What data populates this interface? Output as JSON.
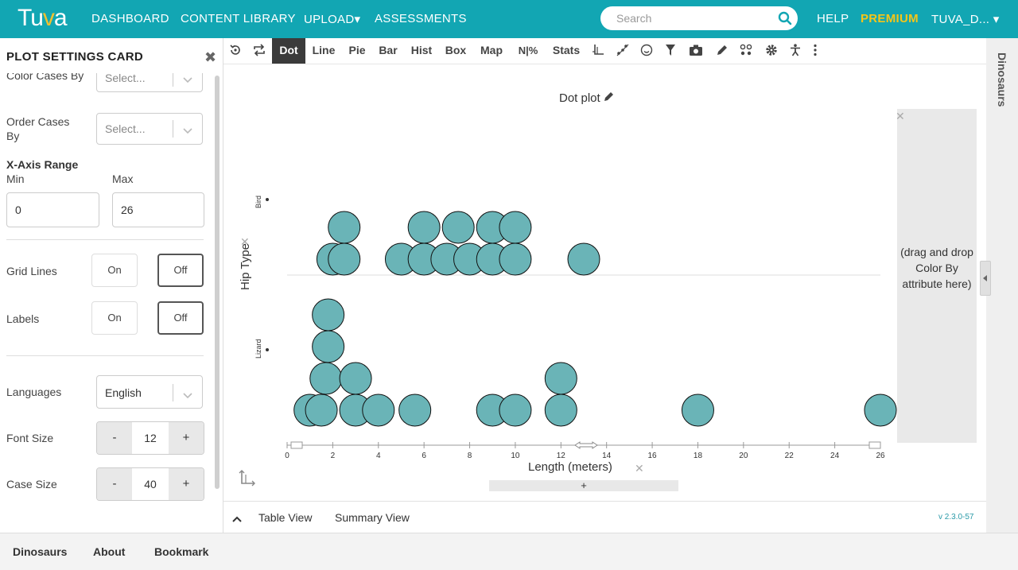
{
  "nav": {
    "logo": "Tuva",
    "items": [
      "DASHBOARD",
      "CONTENT LIBRARY",
      "UPLOAD▾",
      "ASSESSMENTS"
    ],
    "search_placeholder": "Search",
    "help": "HELP",
    "premium": "PREMIUM",
    "user": "TUVA_D... ▾"
  },
  "settings": {
    "title": "PLOT SETTINGS CARD",
    "color_cases_by": {
      "label": "Color Cases By",
      "value": "Select..."
    },
    "order_cases_by": {
      "label_line1": "Order Cases",
      "label_line2": "By",
      "value": "Select..."
    },
    "x_axis_range": {
      "label": "X-Axis Range",
      "min_label": "Min",
      "max_label": "Max",
      "min": "0",
      "max": "26"
    },
    "grid_lines": {
      "label": "Grid Lines",
      "on": "On",
      "off": "Off",
      "selected": "Off"
    },
    "labels": {
      "label": "Labels",
      "on": "On",
      "off": "Off",
      "selected": "Off"
    },
    "languages": {
      "label": "Languages",
      "value": "English"
    },
    "font_size": {
      "label": "Font Size",
      "value": "12",
      "minus": "-",
      "plus": "+"
    },
    "case_size": {
      "label": "Case Size",
      "value": "40",
      "minus": "-",
      "plus": "+"
    }
  },
  "toolbar": {
    "plot_types": [
      "Dot",
      "Line",
      "Pie",
      "Bar",
      "Hist",
      "Box",
      "Map"
    ],
    "active": "Dot",
    "percent_label": "N|%",
    "stats_label": "Stats",
    "icons": [
      "reset-icon",
      "swap-icon",
      "axis-icon",
      "scatter-icon",
      "smiley-icon",
      "filter-icon",
      "camera-icon",
      "pen-icon",
      "link-icon",
      "gear-icon",
      "accessibility-icon",
      "more-icon"
    ]
  },
  "graph": {
    "title": "Dot plot",
    "drop_panel_text": "(drag and drop Color By attribute here)",
    "x_axis_label": "Length (meters)",
    "y_axis_label": "Hip Type",
    "plus_label": "+"
  },
  "chart_data": {
    "type": "scatter",
    "title": "Dot plot",
    "xlabel": "Length (meters)",
    "ylabel": "Hip Type",
    "xlim": [
      0,
      26
    ],
    "x_ticks": [
      0,
      2,
      4,
      6,
      8,
      10,
      12,
      14,
      16,
      18,
      20,
      22,
      24,
      26
    ],
    "categories": [
      "Bird",
      "Lizard"
    ],
    "series": [
      {
        "category": "Bird",
        "x": [
          2,
          2.5,
          2.5,
          5,
          6,
          6,
          7,
          7.5,
          8,
          9,
          9,
          10,
          10,
          13
        ]
      },
      {
        "category": "Lizard",
        "x": [
          1,
          1.5,
          1.7,
          1.8,
          1.8,
          3,
          3,
          4,
          5.6,
          9,
          10,
          12,
          12,
          18,
          26
        ]
      }
    ],
    "point_color": "#6ab4b7",
    "grid": false
  },
  "bottom": {
    "table_view": "Table View",
    "summary_view": "Summary View",
    "version": "v 2.3.0-57"
  },
  "right_panel": {
    "label": "Dinosaurs"
  },
  "footer": {
    "items": [
      "Dinosaurs",
      "About",
      "Bookmark"
    ]
  }
}
